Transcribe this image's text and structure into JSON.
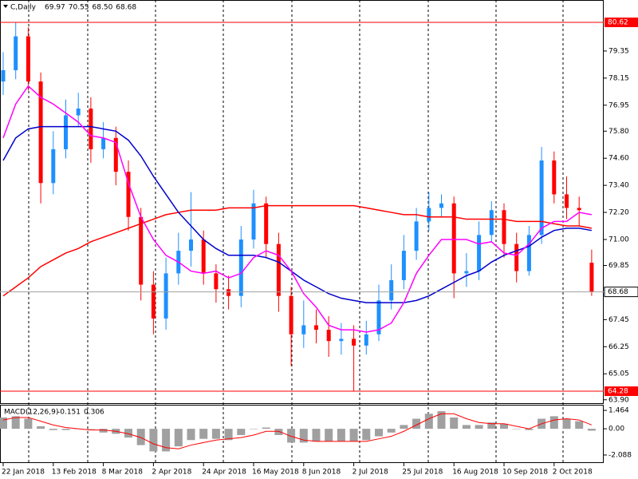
{
  "chart_data": [
    {
      "type": "candlestick",
      "title": "C,Daily",
      "header_values": [
        69.97,
        70.55,
        68.5,
        68.68
      ],
      "header_value_labels": [
        "69.97",
        "70.55",
        "68.50",
        "68.68"
      ],
      "categories": [
        "22 Jan 2018",
        null,
        null,
        null,
        "13 Feb 2018",
        null,
        null,
        null,
        "8 Mar 2018",
        null,
        null,
        null,
        "2 Apr 2018",
        null,
        null,
        null,
        "24 Apr 2018",
        null,
        null,
        null,
        "16 May 2018",
        null,
        null,
        null,
        "8 Jun 2018",
        null,
        null,
        null,
        "2 Jul 2018",
        null,
        null,
        null,
        "25 Jul 2018",
        null,
        null,
        null,
        "16 Aug 2018",
        null,
        null,
        null,
        "10 Sep 2018",
        null,
        null,
        null,
        "2 Oct 2018",
        null,
        null,
        null
      ],
      "open": [
        78.0,
        78.5,
        80.0,
        78.0,
        73.5,
        75.0,
        76.5,
        76.8,
        75.0,
        75.5,
        74.0,
        72.0,
        69.0,
        67.5,
        69.5,
        70.5,
        71.0,
        69.5,
        68.8,
        68.5,
        71.0,
        72.6,
        70.8,
        68.5,
        66.8,
        67.2,
        67.0,
        66.5,
        66.6,
        66.3,
        66.8,
        68.3,
        69.2,
        70.5,
        71.8,
        72.4,
        72.6,
        69.5,
        69.6,
        71.2,
        72.3,
        70.8,
        69.6,
        71.2,
        74.5,
        73.0,
        72.4,
        69.97
      ],
      "high": [
        79.3,
        80.6,
        80.4,
        78.4,
        75.8,
        77.2,
        77.5,
        77.3,
        76.2,
        76.0,
        74.5,
        72.4,
        69.6,
        70.2,
        71.3,
        73.1,
        71.4,
        69.9,
        69.4,
        71.6,
        73.2,
        72.9,
        71.3,
        68.9,
        68.3,
        67.9,
        67.6,
        67.3,
        67.2,
        67.4,
        69.0,
        69.9,
        71.2,
        72.4,
        73.1,
        73.0,
        72.9,
        70.4,
        71.8,
        72.7,
        72.6,
        71.3,
        71.6,
        75.1,
        74.9,
        73.8,
        72.9,
        70.55
      ],
      "low": [
        77.4,
        78.1,
        77.6,
        72.6,
        73.0,
        74.6,
        76.0,
        74.4,
        74.6,
        73.4,
        71.4,
        68.3,
        66.8,
        67.0,
        69.0,
        69.8,
        69.0,
        68.2,
        67.9,
        68.0,
        70.6,
        70.2,
        67.8,
        65.4,
        66.2,
        66.4,
        65.8,
        65.9,
        64.3,
        65.9,
        66.5,
        67.9,
        68.8,
        70.1,
        71.4,
        72.0,
        68.4,
        68.9,
        69.2,
        70.9,
        70.2,
        69.1,
        69.4,
        70.8,
        72.6,
        71.9,
        71.6,
        68.5
      ],
      "close": [
        78.5,
        80.0,
        78.0,
        73.5,
        75.0,
        76.5,
        76.8,
        75.0,
        75.5,
        74.0,
        72.0,
        69.0,
        67.5,
        69.5,
        70.5,
        71.0,
        69.5,
        68.8,
        68.5,
        71.0,
        72.6,
        70.8,
        68.5,
        66.8,
        67.2,
        67.0,
        66.5,
        66.6,
        66.3,
        66.8,
        68.3,
        69.2,
        70.5,
        71.8,
        72.4,
        72.6,
        69.5,
        69.6,
        71.2,
        72.3,
        70.8,
        69.6,
        71.2,
        74.5,
        73.0,
        72.4,
        72.3,
        68.68
      ],
      "up_color": "#1e90ff",
      "down_color": "#ff0000",
      "series": [
        {
          "color": "#ff0000",
          "values": [
            68.5,
            68.9,
            69.3,
            69.8,
            70.1,
            70.4,
            70.6,
            70.9,
            71.1,
            71.3,
            71.5,
            71.7,
            71.9,
            72.1,
            72.2,
            72.3,
            72.3,
            72.3,
            72.4,
            72.4,
            72.4,
            72.5,
            72.5,
            72.5,
            72.5,
            72.5,
            72.5,
            72.5,
            72.5,
            72.4,
            72.3,
            72.2,
            72.1,
            72.1,
            72.0,
            72.0,
            72.0,
            71.9,
            71.9,
            71.9,
            71.9,
            71.8,
            71.8,
            71.8,
            71.7,
            71.6,
            71.6,
            71.5
          ]
        },
        {
          "color": "#0000cd",
          "values": [
            74.5,
            75.5,
            75.9,
            76.0,
            76.0,
            76.0,
            76.0,
            76.0,
            75.9,
            75.8,
            75.4,
            74.7,
            73.8,
            73.0,
            72.2,
            71.6,
            71.0,
            70.6,
            70.3,
            70.3,
            70.3,
            70.2,
            70.0,
            69.6,
            69.2,
            68.9,
            68.6,
            68.4,
            68.3,
            68.2,
            68.2,
            68.2,
            68.2,
            68.3,
            68.5,
            68.8,
            69.1,
            69.4,
            69.6,
            70.0,
            70.3,
            70.5,
            70.7,
            71.1,
            71.4,
            71.5,
            71.5,
            71.4
          ]
        },
        {
          "color": "#ff00ff",
          "values": [
            75.5,
            77.0,
            77.8,
            77.3,
            77.0,
            76.6,
            76.2,
            75.6,
            75.5,
            75.3,
            73.5,
            72.0,
            71.0,
            70.3,
            70.0,
            69.6,
            69.5,
            69.6,
            69.3,
            69.5,
            70.2,
            70.5,
            70.3,
            69.6,
            68.6,
            68.0,
            67.2,
            67.0,
            67.0,
            66.9,
            67.0,
            67.3,
            68.2,
            69.5,
            70.3,
            71.0,
            71.0,
            71.0,
            70.8,
            70.9,
            70.4,
            70.3,
            70.8,
            71.5,
            71.8,
            71.8,
            72.2,
            72.1
          ]
        }
      ],
      "levels": [
        {
          "value": 80.62,
          "color": "#ff0000"
        },
        {
          "value": 64.28,
          "color": "#ff0000"
        }
      ],
      "ylim": [
        63.75,
        81.61
      ],
      "yticks": [
        79.35,
        78.15,
        76.95,
        {
          "value": 75.8,
          "label": "75.80"
        },
        {
          "value": 74.6,
          "label": "74.60"
        },
        {
          "value": 73.4,
          "label": "73.40"
        },
        {
          "value": 72.2,
          "label": "72.20"
        },
        {
          "value": 71,
          "label": "71.00"
        },
        69.85,
        67.45,
        66.25,
        65.05,
        {
          "value": 63.9,
          "label": "63.90"
        }
      ]
    },
    {
      "type": "macd",
      "title": "MACD(12,26,9)",
      "histogram": {
        "color": "#a0a0a0",
        "values": [
          0.9,
          1.0,
          0.8,
          0.2,
          -0.1,
          -0.1,
          0.0,
          0.0,
          -0.3,
          -0.4,
          -0.7,
          -1.3,
          -1.8,
          -1.8,
          -1.4,
          -0.9,
          -0.8,
          -0.8,
          -0.9,
          -0.5,
          0.0,
          0.1,
          -0.5,
          -1.1,
          -1.1,
          -1.0,
          -1.0,
          -1.0,
          -1.0,
          -0.9,
          -0.6,
          -0.3,
          0.3,
          0.8,
          1.2,
          1.4,
          0.9,
          0.3,
          0.3,
          0.5,
          0.4,
          0.0,
          -0.1,
          0.8,
          1.0,
          0.8,
          0.6,
          -0.151
        ]
      },
      "signal": {
        "color": "#ff0000",
        "values": [
          0.7,
          0.9,
          0.9,
          0.6,
          0.3,
          0.1,
          0.0,
          -0.1,
          -0.1,
          -0.2,
          -0.4,
          -0.7,
          -1.2,
          -1.5,
          -1.6,
          -1.3,
          -1.1,
          -0.9,
          -0.8,
          -0.7,
          -0.5,
          -0.2,
          -0.2,
          -0.6,
          -0.9,
          -1.0,
          -1.0,
          -1.0,
          -1.0,
          -1.0,
          -0.8,
          -0.6,
          -0.2,
          0.3,
          0.8,
          1.2,
          1.2,
          0.8,
          0.5,
          0.4,
          0.4,
          0.2,
          0.0,
          0.4,
          0.7,
          0.8,
          0.7,
          0.306
        ]
      },
      "ylim": [
        -2.6,
        1.85
      ],
      "yticks": [
        1.464,
        {
          "value": 0,
          "label": "0.00"
        },
        -2.088
      ]
    }
  ]
}
